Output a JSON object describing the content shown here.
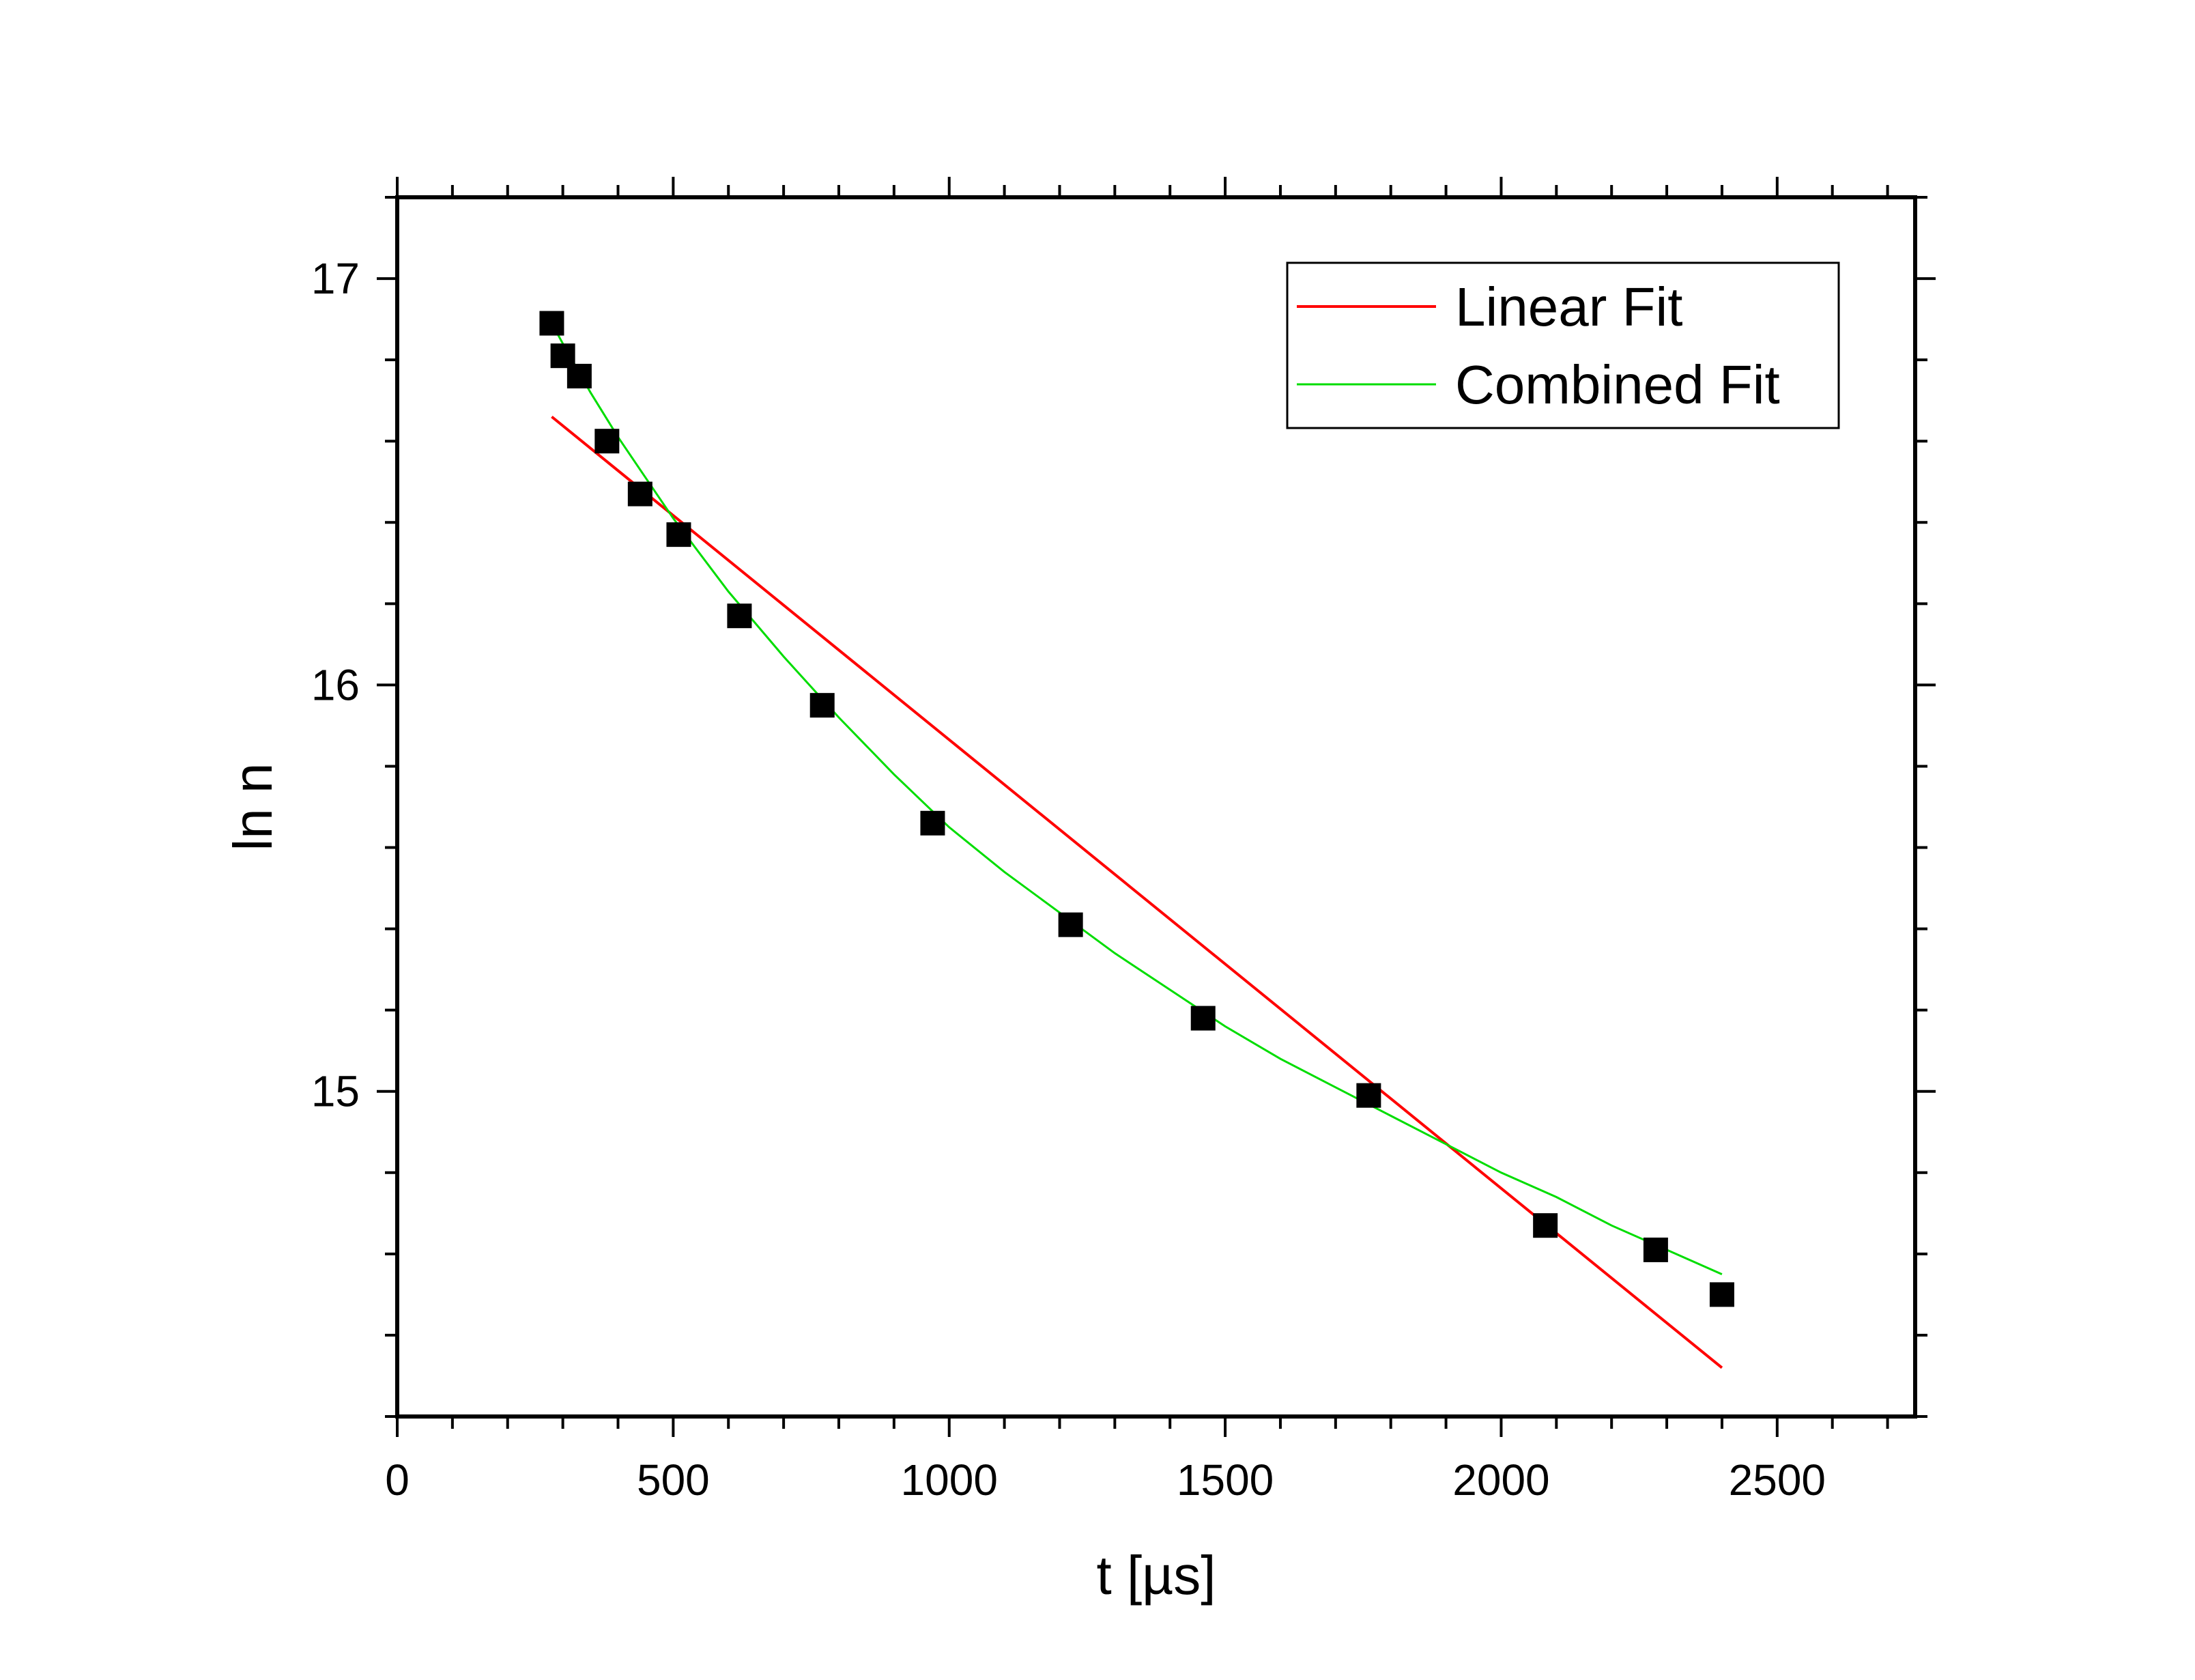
{
  "chart_data": {
    "type": "scatter",
    "title": "",
    "xlabel": "t [µs]",
    "ylabel": "ln n",
    "xlim": [
      0,
      2750
    ],
    "ylim": [
      14.2,
      17.2
    ],
    "x_ticks": [
      0,
      500,
      1000,
      1500,
      2000,
      2500
    ],
    "x_tick_labels": [
      "0",
      "500",
      "1000",
      "1500",
      "2000",
      "2500"
    ],
    "y_ticks": [
      15,
      16,
      17
    ],
    "y_tick_labels": [
      "15",
      "16",
      "17"
    ],
    "grid": false,
    "legend_position": "top-right",
    "series": [
      {
        "kind": "scatter",
        "marker": "square",
        "color": "#000000",
        "x": [
          280,
          300,
          330,
          380,
          440,
          510,
          620,
          770,
          970,
          1220,
          1460,
          1760,
          2080,
          2280,
          2400
        ],
        "y": [
          16.89,
          16.81,
          16.76,
          16.6,
          16.47,
          16.37,
          16.17,
          15.95,
          15.66,
          15.41,
          15.18,
          14.99,
          14.67,
          14.61,
          14.5
        ]
      },
      {
        "name": "Linear Fit",
        "kind": "line",
        "color": "#ff0000",
        "x": [
          280,
          2400
        ],
        "y": [
          16.66,
          14.32
        ]
      },
      {
        "name": "Combined Fit",
        "kind": "line",
        "color": "#00dd00",
        "x": [
          280,
          300,
          350,
          400,
          450,
          500,
          600,
          700,
          800,
          900,
          1000,
          1100,
          1200,
          1300,
          1400,
          1500,
          1600,
          1700,
          1800,
          1900,
          2000,
          2100,
          2200,
          2300,
          2400
        ],
        "y": [
          16.89,
          16.84,
          16.72,
          16.61,
          16.51,
          16.41,
          16.23,
          16.07,
          15.92,
          15.78,
          15.65,
          15.54,
          15.44,
          15.34,
          15.25,
          15.16,
          15.08,
          15.01,
          14.94,
          14.87,
          14.8,
          14.74,
          14.67,
          14.61,
          14.55
        ]
      }
    ]
  }
}
